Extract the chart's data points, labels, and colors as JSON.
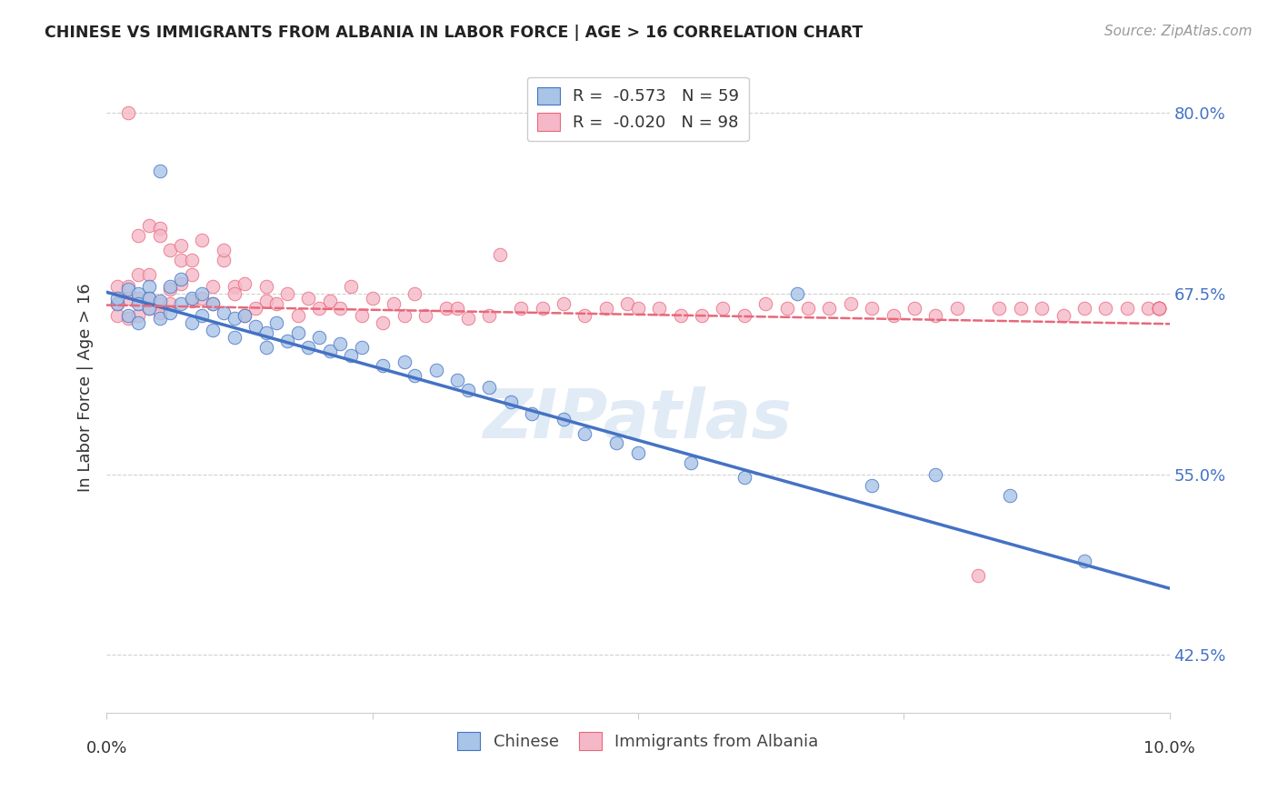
{
  "title": "CHINESE VS IMMIGRANTS FROM ALBANIA IN LABOR FORCE | AGE > 16 CORRELATION CHART",
  "source": "Source: ZipAtlas.com",
  "ylabel": "In Labor Force | Age > 16",
  "yticks": [
    0.425,
    0.55,
    0.675,
    0.8
  ],
  "ytick_labels": [
    "42.5%",
    "55.0%",
    "67.5%",
    "80.0%"
  ],
  "xlim": [
    0.0,
    0.1
  ],
  "ylim": [
    0.385,
    0.835
  ],
  "watermark": "ZIPatlas",
  "legend_R_chinese": "-0.573",
  "legend_N_chinese": "59",
  "legend_R_albania": "-0.020",
  "legend_N_albania": "98",
  "chinese_fill": "#a8c4e6",
  "albania_fill": "#f5b8c8",
  "line_chinese_color": "#4472C4",
  "line_albania_color": "#E8687A",
  "chinese_scatter_x": [
    0.001,
    0.001,
    0.002,
    0.002,
    0.003,
    0.003,
    0.003,
    0.004,
    0.004,
    0.004,
    0.005,
    0.005,
    0.005,
    0.006,
    0.006,
    0.007,
    0.007,
    0.008,
    0.008,
    0.009,
    0.009,
    0.01,
    0.01,
    0.011,
    0.012,
    0.012,
    0.013,
    0.014,
    0.015,
    0.015,
    0.016,
    0.017,
    0.018,
    0.019,
    0.02,
    0.021,
    0.022,
    0.023,
    0.024,
    0.026,
    0.028,
    0.029,
    0.031,
    0.033,
    0.034,
    0.036,
    0.038,
    0.04,
    0.043,
    0.045,
    0.048,
    0.05,
    0.055,
    0.06,
    0.065,
    0.072,
    0.078,
    0.085,
    0.092
  ],
  "chinese_scatter_y": [
    0.668,
    0.672,
    0.678,
    0.66,
    0.675,
    0.668,
    0.655,
    0.68,
    0.665,
    0.672,
    0.76,
    0.67,
    0.658,
    0.68,
    0.662,
    0.685,
    0.668,
    0.672,
    0.655,
    0.675,
    0.66,
    0.668,
    0.65,
    0.662,
    0.658,
    0.645,
    0.66,
    0.652,
    0.648,
    0.638,
    0.655,
    0.642,
    0.648,
    0.638,
    0.645,
    0.635,
    0.64,
    0.632,
    0.638,
    0.625,
    0.628,
    0.618,
    0.622,
    0.615,
    0.608,
    0.61,
    0.6,
    0.592,
    0.588,
    0.578,
    0.572,
    0.565,
    0.558,
    0.548,
    0.675,
    0.542,
    0.55,
    0.535,
    0.49
  ],
  "albania_scatter_x": [
    0.001,
    0.001,
    0.001,
    0.002,
    0.002,
    0.002,
    0.002,
    0.003,
    0.003,
    0.003,
    0.003,
    0.004,
    0.004,
    0.004,
    0.004,
    0.005,
    0.005,
    0.005,
    0.005,
    0.006,
    0.006,
    0.006,
    0.007,
    0.007,
    0.007,
    0.008,
    0.008,
    0.008,
    0.009,
    0.009,
    0.01,
    0.01,
    0.011,
    0.011,
    0.012,
    0.012,
    0.013,
    0.013,
    0.014,
    0.015,
    0.015,
    0.016,
    0.017,
    0.018,
    0.019,
    0.02,
    0.021,
    0.022,
    0.023,
    0.024,
    0.025,
    0.026,
    0.027,
    0.028,
    0.029,
    0.03,
    0.032,
    0.033,
    0.034,
    0.036,
    0.037,
    0.039,
    0.041,
    0.043,
    0.045,
    0.047,
    0.049,
    0.05,
    0.052,
    0.054,
    0.056,
    0.058,
    0.06,
    0.062,
    0.064,
    0.066,
    0.068,
    0.07,
    0.072,
    0.074,
    0.076,
    0.078,
    0.08,
    0.082,
    0.084,
    0.086,
    0.088,
    0.09,
    0.092,
    0.094,
    0.096,
    0.098,
    0.099,
    0.099,
    0.099,
    0.099,
    0.099,
    0.099
  ],
  "albania_scatter_y": [
    0.68,
    0.668,
    0.66,
    0.8,
    0.672,
    0.68,
    0.658,
    0.715,
    0.672,
    0.66,
    0.688,
    0.722,
    0.672,
    0.665,
    0.688,
    0.72,
    0.668,
    0.715,
    0.662,
    0.705,
    0.678,
    0.668,
    0.698,
    0.708,
    0.682,
    0.698,
    0.67,
    0.688,
    0.712,
    0.672,
    0.68,
    0.668,
    0.698,
    0.705,
    0.68,
    0.675,
    0.66,
    0.682,
    0.665,
    0.68,
    0.67,
    0.668,
    0.675,
    0.66,
    0.672,
    0.665,
    0.67,
    0.665,
    0.68,
    0.66,
    0.672,
    0.655,
    0.668,
    0.66,
    0.675,
    0.66,
    0.665,
    0.665,
    0.658,
    0.66,
    0.702,
    0.665,
    0.665,
    0.668,
    0.66,
    0.665,
    0.668,
    0.665,
    0.665,
    0.66,
    0.66,
    0.665,
    0.66,
    0.668,
    0.665,
    0.665,
    0.665,
    0.668,
    0.665,
    0.66,
    0.665,
    0.66,
    0.665,
    0.48,
    0.665,
    0.665,
    0.665,
    0.66,
    0.665,
    0.665,
    0.665,
    0.665,
    0.665,
    0.665,
    0.665,
    0.665,
    0.665,
    0.665
  ],
  "regression_chinese": [
    -2.05,
    0.676
  ],
  "regression_albania": [
    -0.13,
    0.667
  ]
}
